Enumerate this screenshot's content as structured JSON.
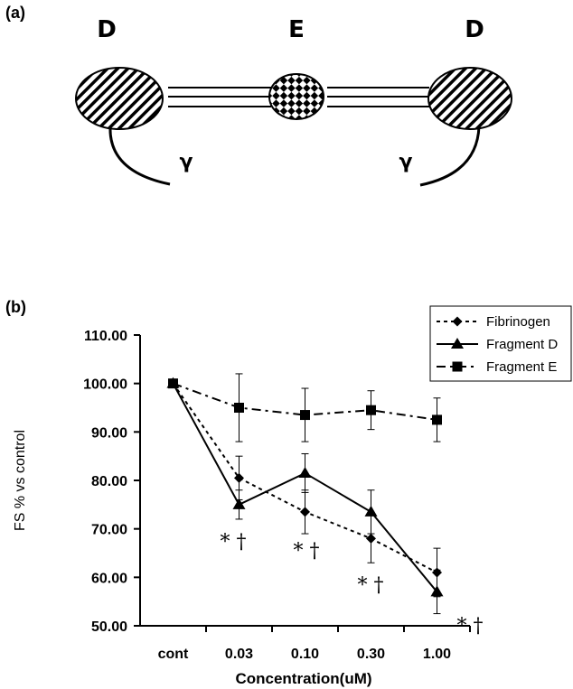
{
  "panels": {
    "a": "(a)",
    "b": "(b)"
  },
  "schematic": {
    "left_domain": "D",
    "center_domain": "E",
    "right_domain": "D",
    "left_chain": "γ",
    "right_chain": "γ"
  },
  "chart_data": {
    "type": "line",
    "xlabel": "Concentration(uM)",
    "ylabel": "FS % vs control",
    "categories": [
      "cont",
      "0.03",
      "0.10",
      "0.30",
      "1.00"
    ],
    "y_ticks": [
      "50.00",
      "60.00",
      "70.00",
      "80.00",
      "90.00",
      "100.00",
      "110.00"
    ],
    "ylim": [
      50,
      110
    ],
    "legend_position": "top-right",
    "series": [
      {
        "name": "Fibrinogen",
        "line_style": "dotted",
        "marker": "diamond",
        "values": [
          100,
          80.5,
          73.5,
          68,
          61
        ],
        "errors": [
          0,
          4.5,
          4.5,
          5,
          5
        ]
      },
      {
        "name": "Fragment D",
        "line_style": "solid",
        "marker": "triangle",
        "values": [
          100,
          75,
          81.5,
          73.5,
          57
        ],
        "errors": [
          0,
          3,
          4,
          4.5,
          4.5
        ]
      },
      {
        "name": "Fragment E",
        "line_style": "dash-dot",
        "marker": "square",
        "values": [
          100,
          95,
          93.5,
          94.5,
          92.5
        ],
        "errors": [
          0,
          7,
          5.5,
          4,
          4.5
        ]
      }
    ],
    "annotations": [
      "* †",
      "* †",
      "* †",
      "* †"
    ]
  }
}
